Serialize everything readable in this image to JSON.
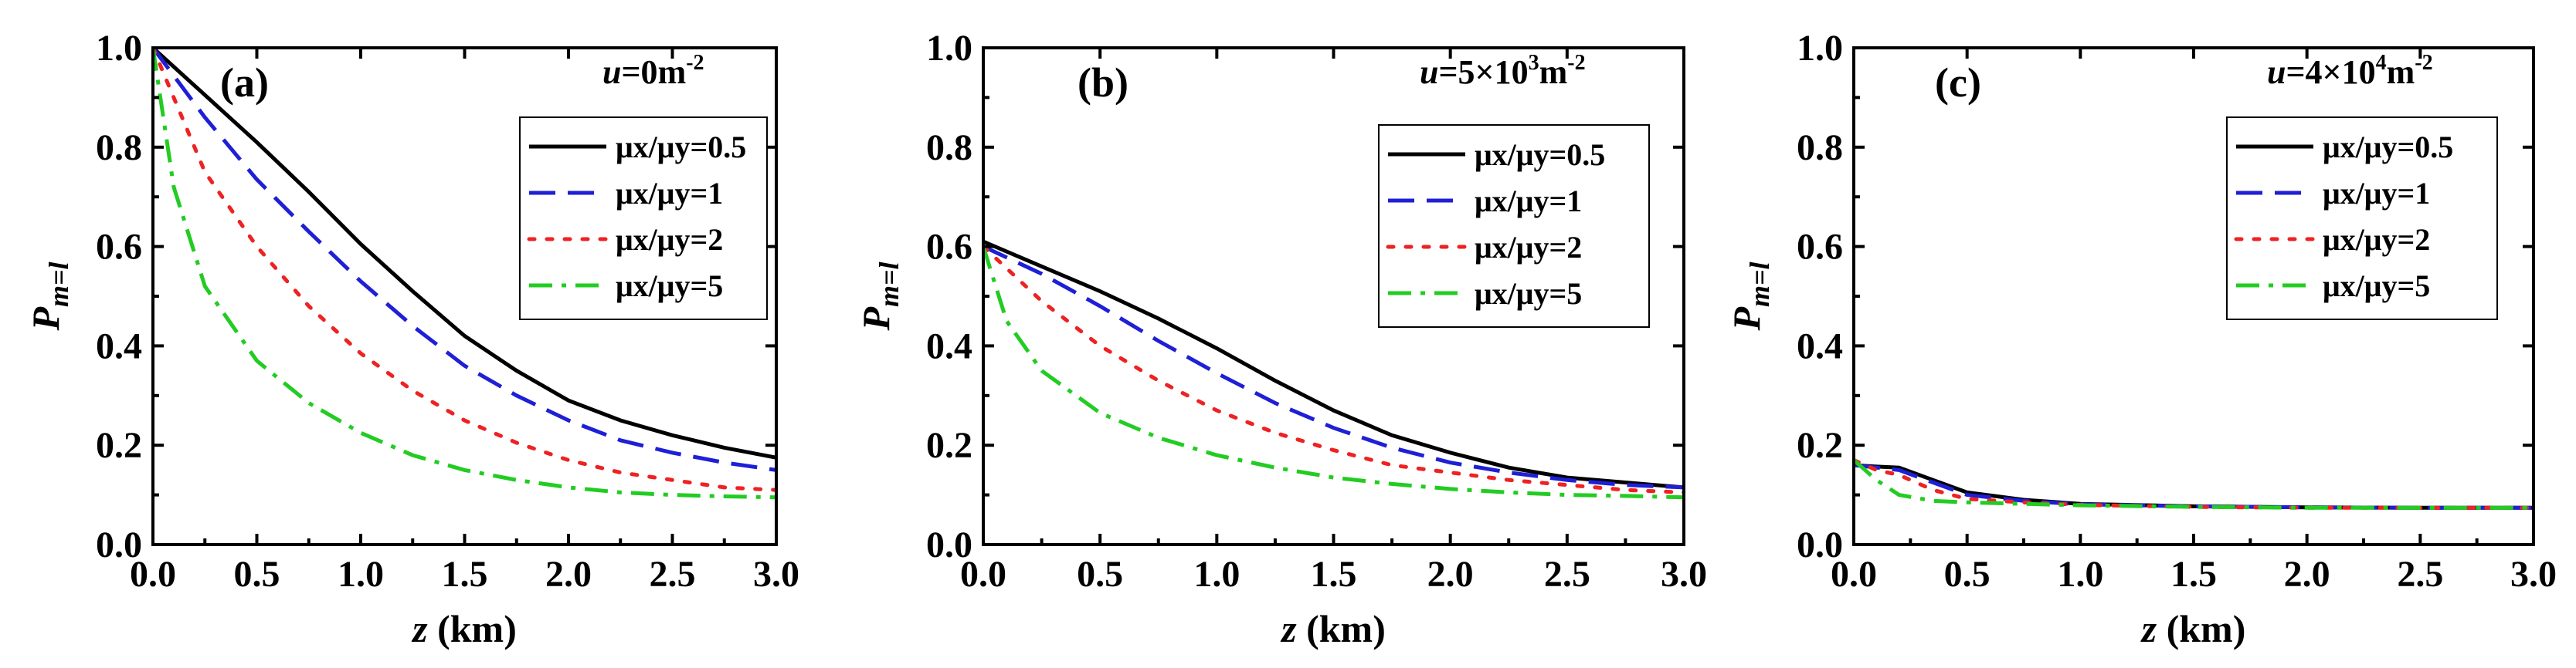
{
  "chart_data": [
    {
      "type": "line",
      "panel_label": "(a)",
      "param": {
        "prefix": "u",
        "value": "=0",
        "unit": "m",
        "exponent": "-2"
      },
      "xlabel": {
        "var": "z",
        "unit": " (km)"
      },
      "ylabel": {
        "base": "P",
        "sub": "m=l"
      },
      "xlim": [
        0.0,
        3.0
      ],
      "ylim": [
        0.0,
        1.0
      ],
      "xticks": [
        "0.0",
        "0.5",
        "1.0",
        "1.5",
        "2.0",
        "2.5",
        "3.0"
      ],
      "yticks": [
        "0.0",
        "0.2",
        "0.4",
        "0.6",
        "0.8",
        "1.0"
      ],
      "legend_position": "top-right",
      "series": [
        {
          "name": "μx/μy=0.5",
          "ratio": "0.5",
          "color": "#000000",
          "dash": "solid",
          "x": [
            0,
            0.25,
            0.5,
            0.75,
            1.0,
            1.25,
            1.5,
            1.75,
            2.0,
            2.25,
            2.5,
            2.75,
            3.0
          ],
          "y": [
            1.0,
            0.905,
            0.81,
            0.71,
            0.605,
            0.51,
            0.42,
            0.35,
            0.29,
            0.25,
            0.22,
            0.195,
            0.175
          ]
        },
        {
          "name": "μx/μy=1",
          "ratio": "1",
          "color": "#1f1fd6",
          "dash": "dashed",
          "x": [
            0,
            0.25,
            0.5,
            0.75,
            1.0,
            1.25,
            1.5,
            1.75,
            2.0,
            2.25,
            2.5,
            2.75,
            3.0
          ],
          "y": [
            1.0,
            0.86,
            0.735,
            0.63,
            0.53,
            0.44,
            0.36,
            0.3,
            0.25,
            0.21,
            0.185,
            0.165,
            0.15
          ]
        },
        {
          "name": "μx/μy=2",
          "ratio": "2",
          "color": "#ee2222",
          "dash": "dotted",
          "x": [
            0,
            0.25,
            0.5,
            0.75,
            1.0,
            1.25,
            1.5,
            1.75,
            2.0,
            2.25,
            2.5,
            2.75,
            3.0
          ],
          "y": [
            1.0,
            0.75,
            0.6,
            0.48,
            0.385,
            0.31,
            0.25,
            0.205,
            0.17,
            0.145,
            0.13,
            0.115,
            0.11
          ]
        },
        {
          "name": "μx/μy=5",
          "ratio": "5",
          "color": "#22cc22",
          "dash": "dashdot",
          "x": [
            0,
            0.1,
            0.25,
            0.5,
            0.75,
            1.0,
            1.25,
            1.5,
            1.75,
            2.0,
            2.25,
            2.5,
            2.75,
            3.0
          ],
          "y": [
            1.0,
            0.72,
            0.52,
            0.37,
            0.285,
            0.225,
            0.18,
            0.15,
            0.13,
            0.115,
            0.105,
            0.1,
            0.097,
            0.095
          ]
        }
      ]
    },
    {
      "type": "line",
      "panel_label": "(b)",
      "param": {
        "prefix": "u",
        "value": "=5×10",
        "unit": "m",
        "exponent": "-2",
        "value_exponent": "3"
      },
      "xlabel": {
        "var": "z",
        "unit": " (km)"
      },
      "ylabel": {
        "base": "P",
        "sub": "m=l"
      },
      "xlim": [
        0.0,
        3.0
      ],
      "ylim": [
        0.0,
        1.0
      ],
      "xticks": [
        "0.0",
        "0.5",
        "1.0",
        "1.5",
        "2.0",
        "2.5",
        "3.0"
      ],
      "yticks": [
        "0.0",
        "0.2",
        "0.4",
        "0.6",
        "0.8",
        "1.0"
      ],
      "legend_position": "top-right",
      "series": [
        {
          "name": "μx/μy=0.5",
          "ratio": "0.5",
          "color": "#000000",
          "dash": "solid",
          "x": [
            0,
            0.25,
            0.5,
            0.75,
            1.0,
            1.25,
            1.5,
            1.75,
            2.0,
            2.25,
            2.5,
            2.75,
            3.0
          ],
          "y": [
            0.61,
            0.56,
            0.51,
            0.455,
            0.395,
            0.33,
            0.27,
            0.22,
            0.185,
            0.155,
            0.135,
            0.125,
            0.115
          ]
        },
        {
          "name": "μx/μy=1",
          "ratio": "1",
          "color": "#1f1fd6",
          "dash": "dashed",
          "x": [
            0,
            0.25,
            0.5,
            0.75,
            1.0,
            1.25,
            1.5,
            1.75,
            2.0,
            2.25,
            2.5,
            2.75,
            3.0
          ],
          "y": [
            0.6,
            0.545,
            0.48,
            0.41,
            0.345,
            0.285,
            0.235,
            0.195,
            0.165,
            0.145,
            0.13,
            0.12,
            0.115
          ]
        },
        {
          "name": "μx/μy=2",
          "ratio": "2",
          "color": "#ee2222",
          "dash": "dotted",
          "x": [
            0,
            0.25,
            0.5,
            0.75,
            1.0,
            1.25,
            1.5,
            1.75,
            2.0,
            2.25,
            2.5,
            2.75,
            3.0
          ],
          "y": [
            0.6,
            0.49,
            0.4,
            0.33,
            0.27,
            0.225,
            0.19,
            0.16,
            0.145,
            0.13,
            0.12,
            0.11,
            0.105
          ]
        },
        {
          "name": "μx/μy=5",
          "ratio": "5",
          "color": "#22cc22",
          "dash": "dashdot",
          "x": [
            0,
            0.1,
            0.25,
            0.5,
            0.75,
            1.0,
            1.25,
            1.5,
            1.75,
            2.0,
            2.25,
            2.5,
            2.75,
            3.0
          ],
          "y": [
            0.6,
            0.45,
            0.35,
            0.265,
            0.215,
            0.18,
            0.155,
            0.135,
            0.122,
            0.112,
            0.105,
            0.1,
            0.098,
            0.095
          ]
        }
      ]
    },
    {
      "type": "line",
      "panel_label": "(c)",
      "param": {
        "prefix": "u",
        "value": "=4×10",
        "unit": "m",
        "exponent": "-2",
        "value_exponent": "4"
      },
      "xlabel": {
        "var": "z",
        "unit": " (km)"
      },
      "ylabel": {
        "base": "P",
        "sub": "m=l"
      },
      "xlim": [
        0.0,
        3.0
      ],
      "ylim": [
        0.0,
        1.0
      ],
      "xticks": [
        "0.0",
        "0.5",
        "1.0",
        "1.5",
        "2.0",
        "2.5",
        "3.0"
      ],
      "yticks": [
        "0.0",
        "0.2",
        "0.4",
        "0.6",
        "0.8",
        "1.0"
      ],
      "legend_position": "top-right",
      "series": [
        {
          "name": "μx/μy=0.5",
          "ratio": "0.5",
          "color": "#000000",
          "dash": "solid",
          "x": [
            0,
            0.1,
            0.2,
            0.35,
            0.5,
            0.75,
            1.0,
            1.5,
            2.0,
            2.5,
            3.0
          ],
          "y": [
            0.16,
            0.157,
            0.155,
            0.13,
            0.105,
            0.09,
            0.082,
            0.077,
            0.075,
            0.074,
            0.074
          ]
        },
        {
          "name": "μx/μy=1",
          "ratio": "1",
          "color": "#1f1fd6",
          "dash": "dashed",
          "x": [
            0,
            0.1,
            0.2,
            0.35,
            0.5,
            0.75,
            1.0,
            1.5,
            2.0,
            2.5,
            3.0
          ],
          "y": [
            0.16,
            0.155,
            0.15,
            0.125,
            0.1,
            0.088,
            0.081,
            0.077,
            0.075,
            0.074,
            0.074
          ]
        },
        {
          "name": "μx/μy=2",
          "ratio": "2",
          "color": "#ee2222",
          "dash": "dotted",
          "x": [
            0,
            0.1,
            0.2,
            0.35,
            0.5,
            0.75,
            1.0,
            1.5,
            2.0,
            2.5,
            3.0
          ],
          "y": [
            0.17,
            0.15,
            0.14,
            0.11,
            0.092,
            0.085,
            0.08,
            0.076,
            0.074,
            0.074,
            0.074
          ]
        },
        {
          "name": "μx/μy=5",
          "ratio": "5",
          "color": "#22cc22",
          "dash": "dashdot",
          "x": [
            0,
            0.1,
            0.2,
            0.35,
            0.5,
            0.75,
            1.0,
            1.5,
            2.0,
            2.5,
            3.0
          ],
          "y": [
            0.17,
            0.13,
            0.1,
            0.088,
            0.085,
            0.082,
            0.079,
            0.076,
            0.074,
            0.074,
            0.074
          ]
        }
      ]
    }
  ]
}
